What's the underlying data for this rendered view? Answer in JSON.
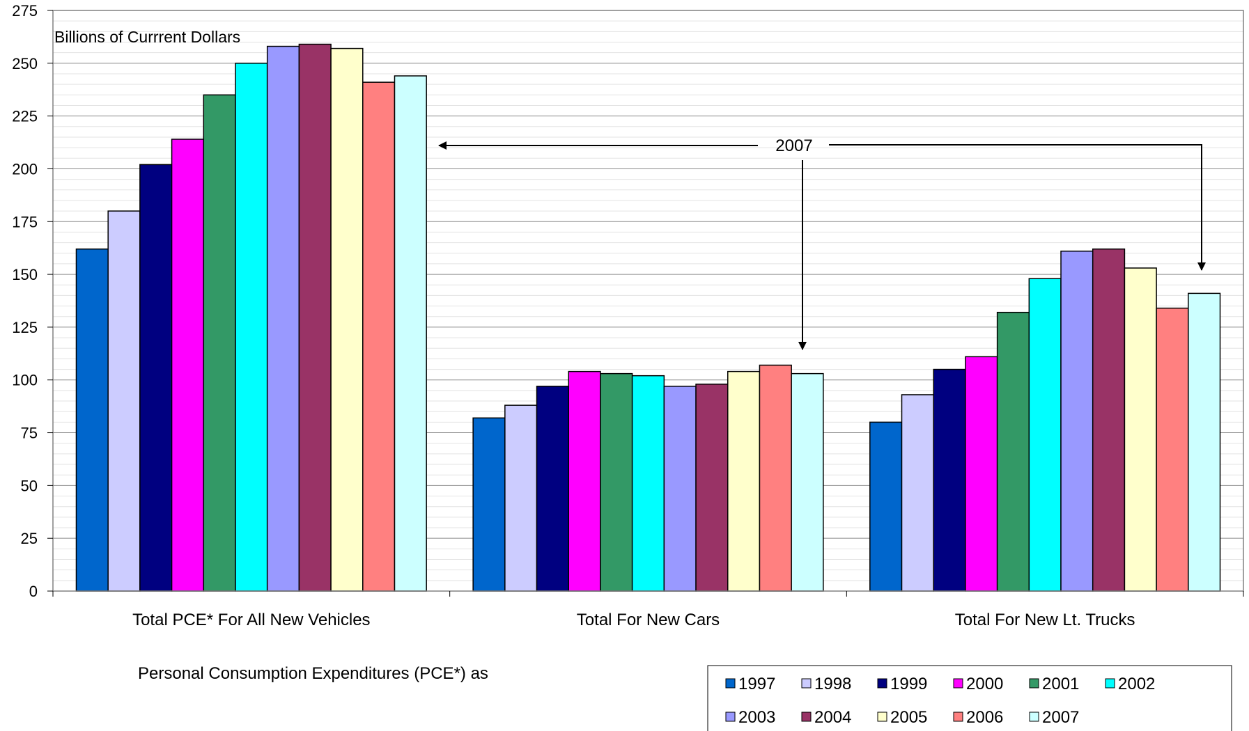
{
  "chart_data": {
    "type": "bar",
    "ylabel": "Billions of Currrent Dollars",
    "ylim": [
      0,
      275
    ],
    "y_ticks": [
      0,
      25,
      50,
      75,
      100,
      125,
      150,
      175,
      200,
      225,
      250,
      275
    ],
    "grid": "on",
    "categories": [
      "Total PCE* For All New Vehicles",
      "Total For New Cars",
      "Total For New Lt. Trucks"
    ],
    "caption": "Personal Consumption Expenditures (PCE*) as",
    "annotation": "2007",
    "legend_position": "bottom-right",
    "series": [
      {
        "name": "1997",
        "color": "#0066CC",
        "values": [
          162,
          82,
          80
        ]
      },
      {
        "name": "1998",
        "color": "#CCCCFF",
        "values": [
          180,
          88,
          93
        ]
      },
      {
        "name": "1999",
        "color": "#000080",
        "values": [
          202,
          97,
          105
        ]
      },
      {
        "name": "2000",
        "color": "#FF00FF",
        "values": [
          214,
          104,
          111
        ]
      },
      {
        "name": "2001",
        "color": "#339966",
        "values": [
          235,
          103,
          132
        ]
      },
      {
        "name": "2002",
        "color": "#00FFFF",
        "values": [
          250,
          102,
          148
        ]
      },
      {
        "name": "2003",
        "color": "#9999FF",
        "values": [
          258,
          97,
          161
        ]
      },
      {
        "name": "2004",
        "color": "#993366",
        "values": [
          259,
          98,
          162
        ]
      },
      {
        "name": "2005",
        "color": "#FFFFCC",
        "values": [
          257,
          104,
          153
        ]
      },
      {
        "name": "2006",
        "color": "#FF8080",
        "values": [
          241,
          107,
          134
        ]
      },
      {
        "name": "2007",
        "color": "#CCFFFF",
        "values": [
          244,
          103,
          141
        ]
      }
    ]
  }
}
